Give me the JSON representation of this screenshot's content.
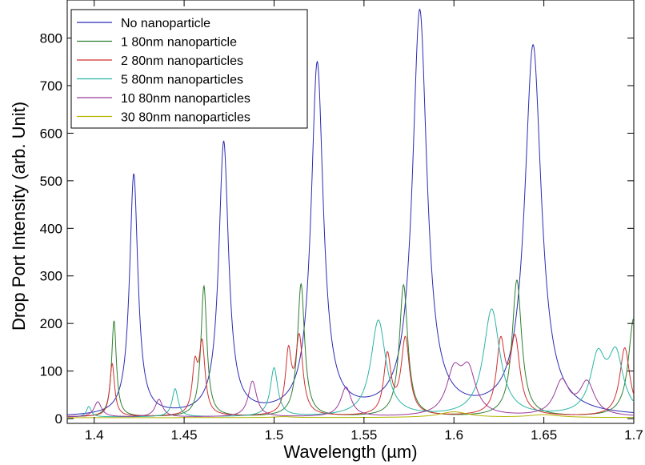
{
  "chart_data": {
    "type": "line",
    "xlabel": "Wavelength (µm)",
    "ylabel": "Drop Port Intensity (arb. Unit)",
    "xlim": [
      1.385,
      1.7
    ],
    "ylim": [
      -10,
      880
    ],
    "xticks": [
      "1.4",
      "1.45",
      "1.5",
      "1.55",
      "1.6",
      "1.65",
      "1.7"
    ],
    "yticks": [
      "0",
      "100",
      "200",
      "300",
      "400",
      "500",
      "600",
      "700",
      "800"
    ],
    "grid": false,
    "legend_position": "top-left",
    "series": [
      {
        "name": "No nanoparticle",
        "color": "#2b2bb5",
        "baseline": 3,
        "peaks": [
          [
            1.422,
            510,
            0.0028
          ],
          [
            1.472,
            575,
            0.0033
          ],
          [
            1.524,
            740,
            0.0041
          ],
          [
            1.581,
            850,
            0.0049
          ],
          [
            1.644,
            780,
            0.0056
          ]
        ]
      },
      {
        "name": "1 80nm nanoparticle",
        "color": "#2f7f2f",
        "baseline": 3,
        "peaks": [
          [
            1.411,
            205,
            0.0016
          ],
          [
            1.461,
            278,
            0.002
          ],
          [
            1.515,
            282,
            0.0024
          ],
          [
            1.572,
            280,
            0.0028
          ],
          [
            1.635,
            290,
            0.0032
          ],
          [
            1.7,
            210,
            0.0036
          ]
        ]
      },
      {
        "name": "2 80nm nanoparticles",
        "color": "#d03030",
        "baseline": 4,
        "peaks": [
          [
            1.41,
            115,
            0.0016
          ],
          [
            1.46,
            150,
            0.002
          ],
          [
            1.514,
            165,
            0.0024
          ],
          [
            1.573,
            165,
            0.0028
          ],
          [
            1.634,
            160,
            0.0032
          ],
          [
            1.695,
            148,
            0.0034
          ],
          [
            1.456,
            100,
            0.0018
          ],
          [
            1.508,
            130,
            0.002
          ],
          [
            1.563,
            128,
            0.0024
          ],
          [
            1.626,
            150,
            0.0028
          ]
        ]
      },
      {
        "name": "5 80nm nanoparticles",
        "color": "#2bb5a5",
        "baseline": 3,
        "peaks": [
          [
            1.397,
            25,
            0.0016
          ],
          [
            1.445,
            62,
            0.002
          ],
          [
            1.5,
            105,
            0.0025
          ],
          [
            1.558,
            205,
            0.005
          ],
          [
            1.621,
            228,
            0.0055
          ],
          [
            1.68,
            120,
            0.005
          ],
          [
            1.69,
            125,
            0.005
          ]
        ]
      },
      {
        "name": "10 80nm nanoparticles",
        "color": "#9a3a9a",
        "baseline": 3,
        "peaks": [
          [
            1.402,
            35,
            0.0025
          ],
          [
            1.436,
            40,
            0.0025
          ],
          [
            1.488,
            78,
            0.0028
          ],
          [
            1.54,
            65,
            0.0035
          ],
          [
            1.6,
            90,
            0.005
          ],
          [
            1.608,
            92,
            0.005
          ],
          [
            1.66,
            75,
            0.005
          ],
          [
            1.674,
            72,
            0.005
          ]
        ]
      },
      {
        "name": "30 80nm nanoparticles",
        "color": "#b3b300",
        "baseline": 2,
        "peaks": [
          [
            1.505,
            4,
            0.006
          ],
          [
            1.6,
            14,
            0.01
          ],
          [
            1.65,
            8,
            0.01
          ]
        ]
      }
    ]
  }
}
